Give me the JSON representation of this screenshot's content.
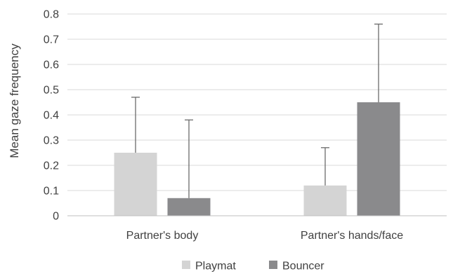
{
  "chart_data": {
    "type": "bar",
    "title": "",
    "xlabel": "",
    "ylabel": "Mean  gaze  frequency",
    "ylim": [
      0,
      0.8
    ],
    "yticks": [
      "0",
      "0.1",
      "0.2",
      "0.3",
      "0.4",
      "0.5",
      "0.6",
      "0.7",
      "0.8"
    ],
    "categories": [
      "Partner's body",
      "Partner's hands/face"
    ],
    "series": [
      {
        "name": "Playmat",
        "color": "#d4d4d4",
        "values": [
          0.25,
          0.12
        ],
        "error_upper": [
          0.47,
          0.27
        ]
      },
      {
        "name": "Bouncer",
        "color": "#8a8a8c",
        "values": [
          0.07,
          0.45
        ],
        "error_upper": [
          0.38,
          0.76
        ]
      }
    ],
    "grid": true,
    "legend_position": "bottom"
  }
}
